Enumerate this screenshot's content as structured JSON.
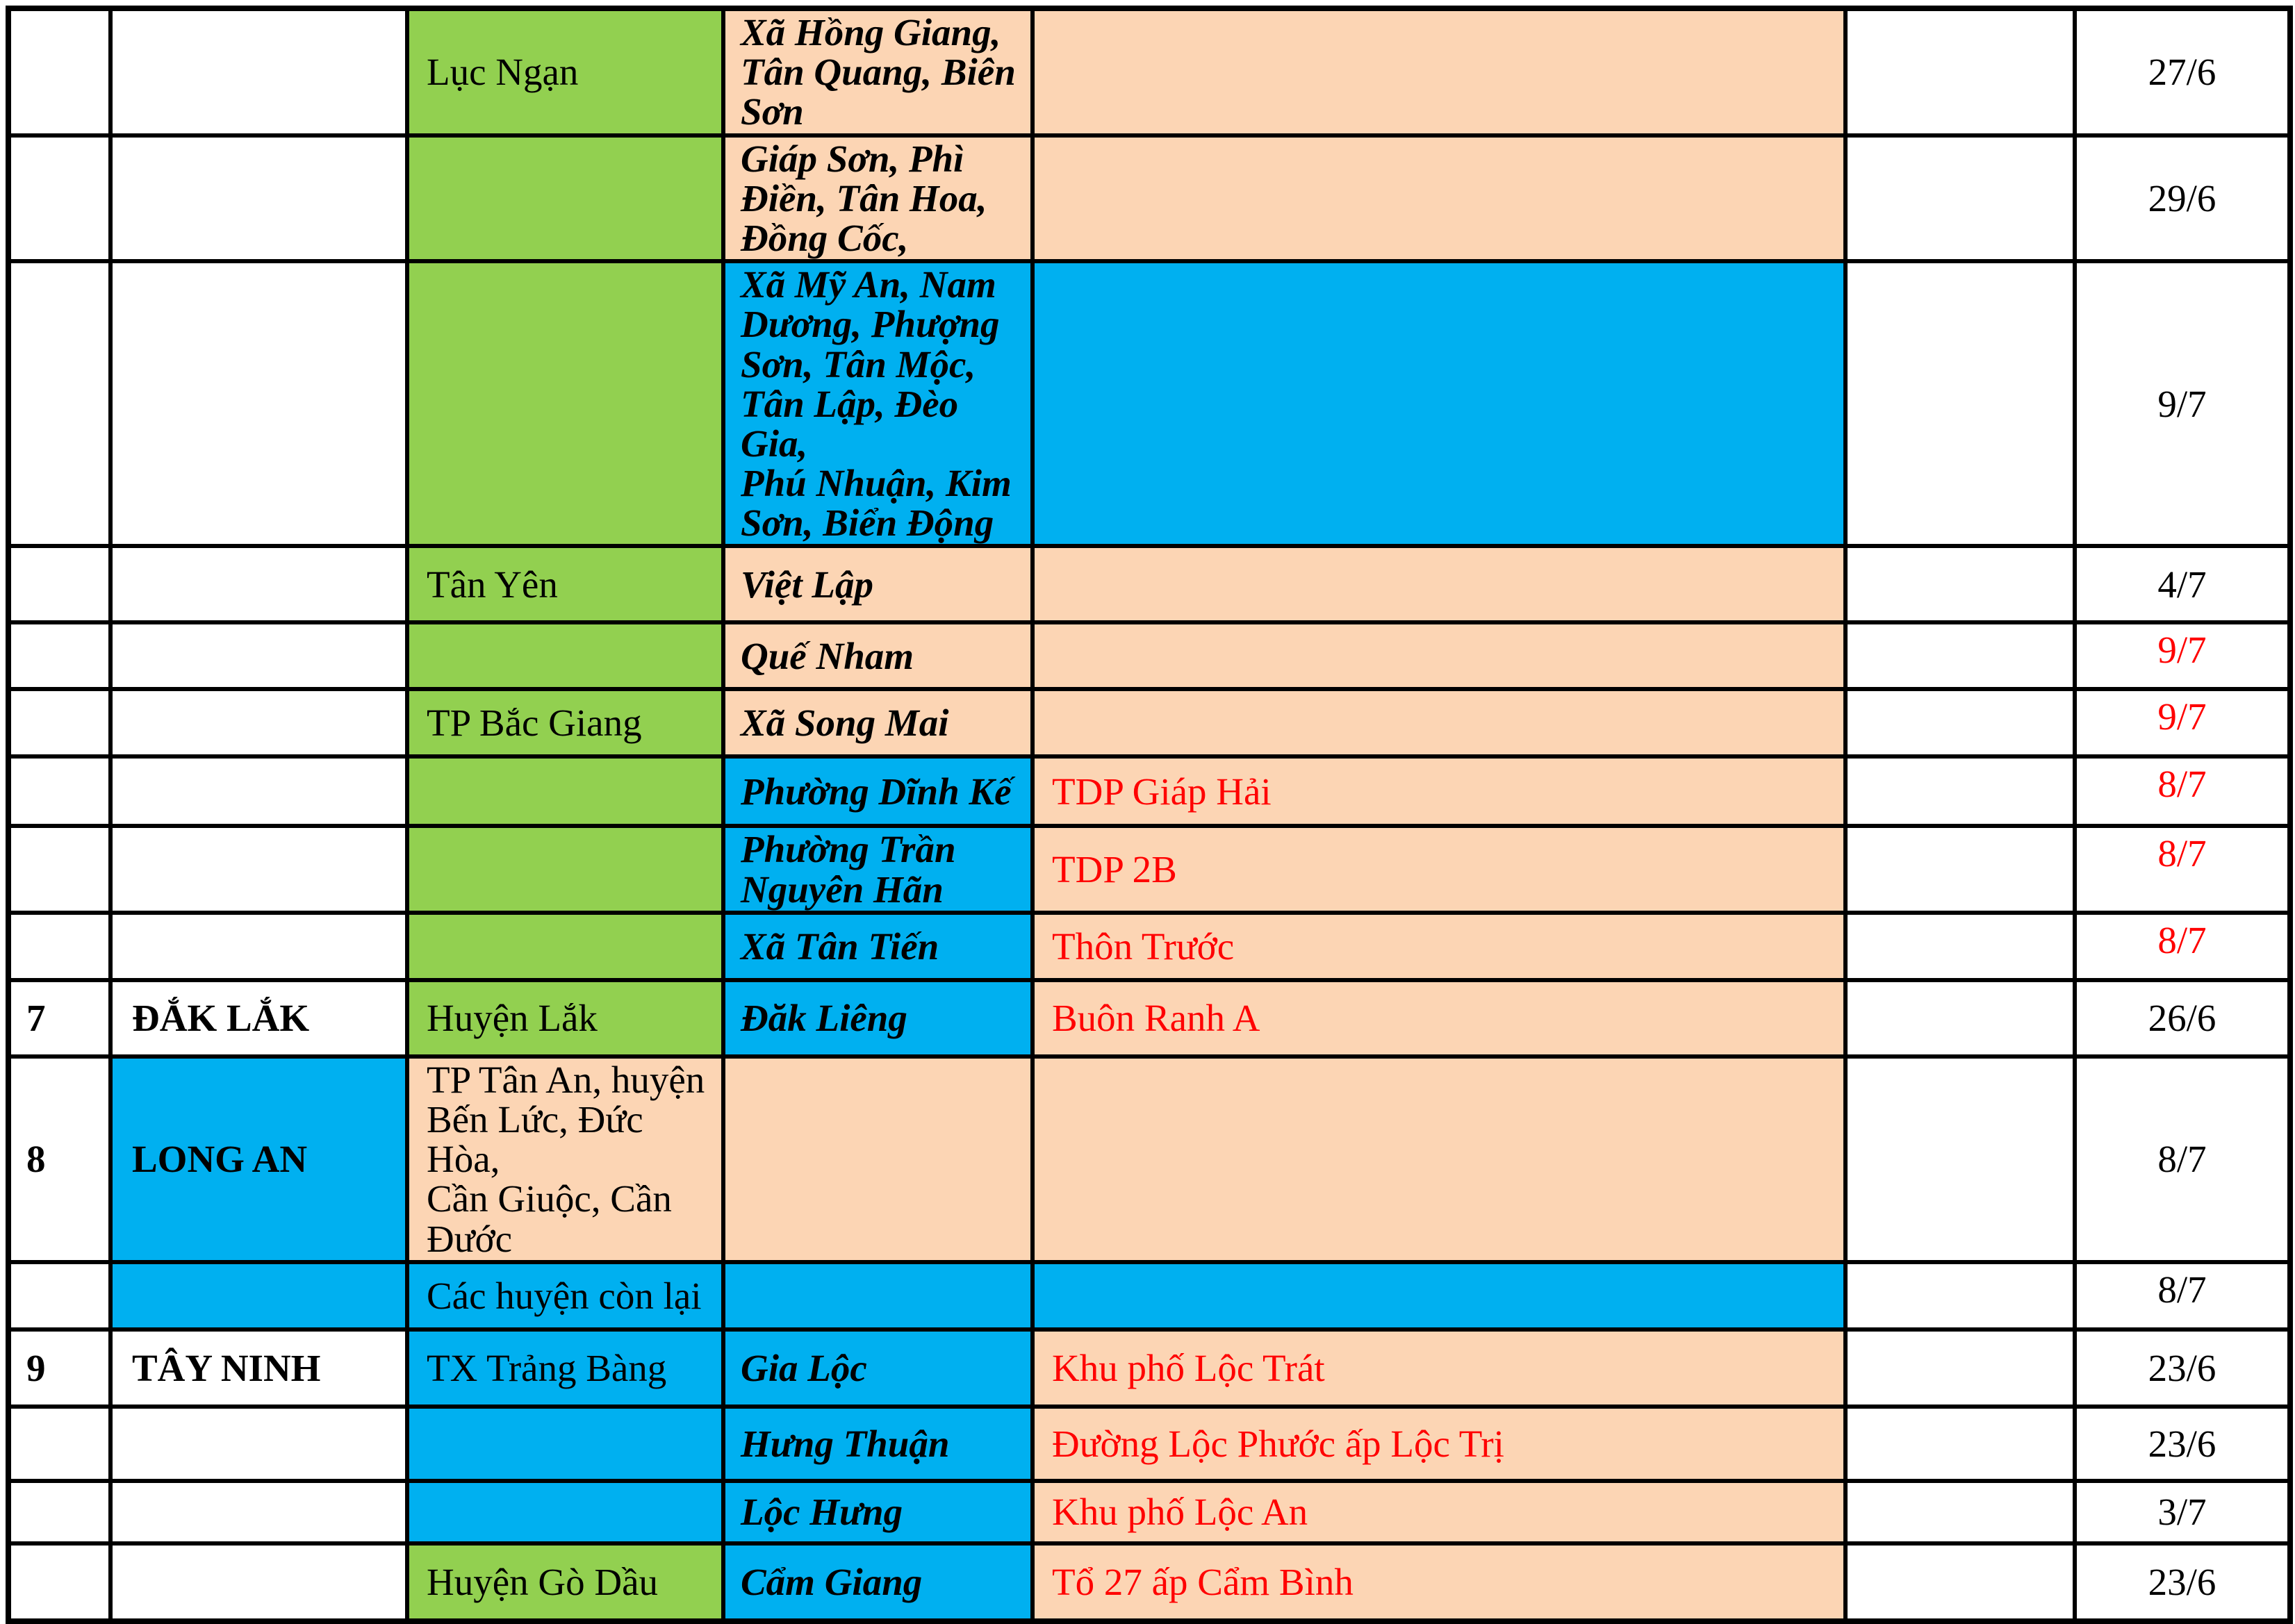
{
  "palette": {
    "green": "#92D050",
    "blue": "#00B0F0",
    "peach": "#FCD5B4",
    "white": "#FFFFFF",
    "red_text": "#FF0000",
    "black_text": "#000000",
    "border": "#000000"
  },
  "table": {
    "columns": [
      "no",
      "province",
      "district",
      "commune",
      "detail",
      "spare",
      "date"
    ],
    "rows": [
      {
        "cells": [
          {
            "t": ""
          },
          {
            "t": ""
          },
          {
            "t": "Lục Ngạn",
            "bg": "green"
          },
          {
            "t": "Xã Hồng Giang,\nTân Quang, Biên\nSơn",
            "bg": "peach"
          },
          {
            "t": "",
            "bg": "peach"
          },
          {
            "t": ""
          },
          {
            "t": "27/6"
          }
        ]
      },
      {
        "cells": [
          {
            "t": ""
          },
          {
            "t": ""
          },
          {
            "t": "",
            "bg": "green"
          },
          {
            "t": "Giáp Sơn, Phì\nĐiền, Tân Hoa,\nĐồng Cốc,",
            "bg": "peach"
          },
          {
            "t": "",
            "bg": "peach"
          },
          {
            "t": ""
          },
          {
            "t": "29/6"
          }
        ]
      },
      {
        "cells": [
          {
            "t": ""
          },
          {
            "t": ""
          },
          {
            "t": "",
            "bg": "green"
          },
          {
            "t": "Xã Mỹ An, Nam\nDương, Phượng\nSơn, Tân Mộc,\nTân Lập, Đèo Gia,\nPhú Nhuận, Kim\nSơn, Biển Động",
            "bg": "blue"
          },
          {
            "t": "",
            "bg": "blue"
          },
          {
            "t": ""
          },
          {
            "t": "9/7"
          }
        ]
      },
      {
        "cells": [
          {
            "t": ""
          },
          {
            "t": ""
          },
          {
            "t": "Tân Yên",
            "bg": "green"
          },
          {
            "t": "Việt Lập",
            "bg": "peach"
          },
          {
            "t": "",
            "bg": "peach"
          },
          {
            "t": ""
          },
          {
            "t": "4/7"
          }
        ]
      },
      {
        "cells": [
          {
            "t": ""
          },
          {
            "t": ""
          },
          {
            "t": "",
            "bg": "green"
          },
          {
            "t": "Quế Nham",
            "bg": "peach"
          },
          {
            "t": "",
            "bg": "peach"
          },
          {
            "t": ""
          },
          {
            "t": "9/7",
            "red": true,
            "top": true
          }
        ]
      },
      {
        "cells": [
          {
            "t": ""
          },
          {
            "t": ""
          },
          {
            "t": "TP Bắc Giang",
            "bg": "green"
          },
          {
            "t": "Xã Song Mai",
            "bg": "peach"
          },
          {
            "t": "",
            "bg": "peach"
          },
          {
            "t": ""
          },
          {
            "t": "9/7",
            "red": true,
            "top": true
          }
        ]
      },
      {
        "cells": [
          {
            "t": ""
          },
          {
            "t": ""
          },
          {
            "t": "",
            "bg": "green"
          },
          {
            "t": "Phường Dĩnh Kế",
            "bg": "blue"
          },
          {
            "t": "TDP Giáp Hải",
            "bg": "peach",
            "red": true
          },
          {
            "t": ""
          },
          {
            "t": "8/7",
            "red": true,
            "top": true
          }
        ]
      },
      {
        "cells": [
          {
            "t": ""
          },
          {
            "t": ""
          },
          {
            "t": "",
            "bg": "green"
          },
          {
            "t": "Phường Trần\nNguyên Hãn",
            "bg": "blue"
          },
          {
            "t": "TDP 2B",
            "bg": "peach",
            "red": true
          },
          {
            "t": ""
          },
          {
            "t": "8/7",
            "red": true,
            "top": true
          }
        ]
      },
      {
        "cells": [
          {
            "t": ""
          },
          {
            "t": ""
          },
          {
            "t": "",
            "bg": "green"
          },
          {
            "t": "Xã Tân Tiến",
            "bg": "blue"
          },
          {
            "t": "Thôn Trước",
            "bg": "peach",
            "red": true
          },
          {
            "t": ""
          },
          {
            "t": "8/7",
            "red": true,
            "top": true
          }
        ]
      },
      {
        "cells": [
          {
            "t": "7"
          },
          {
            "t": "ĐẮK LẮK"
          },
          {
            "t": "Huyện Lắk",
            "bg": "green"
          },
          {
            "t": "Đăk Liêng",
            "bg": "blue"
          },
          {
            "t": "Buôn Ranh A",
            "bg": "peach",
            "red": true
          },
          {
            "t": ""
          },
          {
            "t": "26/6"
          }
        ]
      },
      {
        "cells": [
          {
            "t": "8"
          },
          {
            "t": "LONG AN",
            "bg": "blue"
          },
          {
            "t": "TP Tân An, huyện\nBến Lức, Đức Hòa,\nCần Giuộc, Cần\nĐước",
            "bg": "peach"
          },
          {
            "t": "",
            "bg": "peach"
          },
          {
            "t": "",
            "bg": "peach"
          },
          {
            "t": ""
          },
          {
            "t": "8/7"
          }
        ]
      },
      {
        "cells": [
          {
            "t": ""
          },
          {
            "t": "",
            "bg": "blue"
          },
          {
            "t": "Các huyện còn lại",
            "bg": "blue"
          },
          {
            "t": "",
            "bg": "blue"
          },
          {
            "t": "",
            "bg": "blue"
          },
          {
            "t": ""
          },
          {
            "t": "8/7",
            "top": true
          }
        ]
      },
      {
        "cells": [
          {
            "t": "9"
          },
          {
            "t": "TÂY NINH"
          },
          {
            "t": "TX Trảng Bàng",
            "bg": "blue"
          },
          {
            "t": "Gia Lộc",
            "bg": "blue"
          },
          {
            "t": "Khu phố Lộc Trát",
            "bg": "peach",
            "red": true
          },
          {
            "t": ""
          },
          {
            "t": "23/6"
          }
        ]
      },
      {
        "cells": [
          {
            "t": ""
          },
          {
            "t": ""
          },
          {
            "t": "",
            "bg": "blue"
          },
          {
            "t": "Hưng Thuận",
            "bg": "blue"
          },
          {
            "t": "Đường Lộc Phước ấp Lộc Trị",
            "bg": "peach",
            "red": true
          },
          {
            "t": ""
          },
          {
            "t": "23/6"
          }
        ]
      },
      {
        "cells": [
          {
            "t": ""
          },
          {
            "t": ""
          },
          {
            "t": "",
            "bg": "blue"
          },
          {
            "t": "Lộc Hưng",
            "bg": "blue"
          },
          {
            "t": "Khu phố Lộc An",
            "bg": "peach",
            "red": true
          },
          {
            "t": ""
          },
          {
            "t": "3/7"
          }
        ]
      },
      {
        "cells": [
          {
            "t": ""
          },
          {
            "t": ""
          },
          {
            "t": "Huyện Gò Dầu",
            "bg": "green"
          },
          {
            "t": "Cẩm Giang",
            "bg": "blue"
          },
          {
            "t": "Tổ 27 ấp Cẩm Bình",
            "bg": "peach",
            "red": true
          },
          {
            "t": ""
          },
          {
            "t": "23/6"
          }
        ]
      }
    ]
  }
}
